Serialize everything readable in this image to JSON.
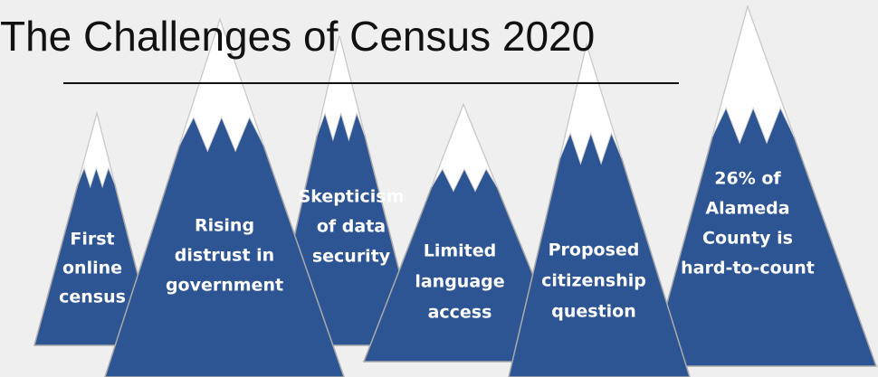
{
  "title": "The Challenges of Census 2020",
  "mountains": [
    {
      "lines": [
        "First",
        "online",
        "census"
      ]
    },
    {
      "lines": [
        "Rising",
        "distrust in",
        "government"
      ]
    },
    {
      "lines": [
        "Skepticism",
        "of data",
        "security"
      ]
    },
    {
      "lines": [
        "Limited",
        "language",
        "access"
      ]
    },
    {
      "lines": [
        "Proposed",
        "citizenship",
        "question"
      ]
    },
    {
      "lines": [
        "26% of",
        "Alameda",
        "County is",
        "hard-to-count"
      ]
    }
  ]
}
